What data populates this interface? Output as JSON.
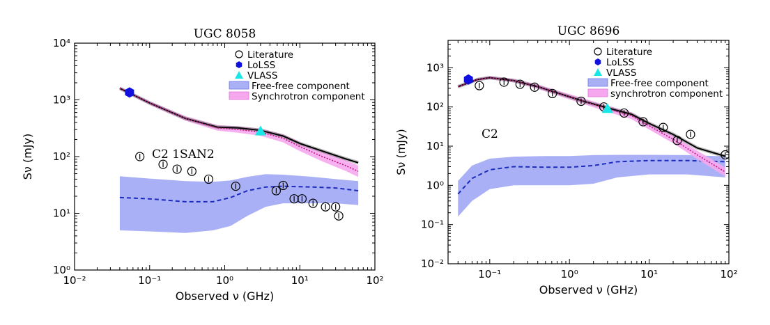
{
  "chart_data": [
    {
      "type": "scatter",
      "title": "UGC 8058",
      "xlabel": "Observed ν (GHz)",
      "ylabel": "Sν (mJy)",
      "annotation": "C2 1SAN2",
      "xscale": "log",
      "yscale": "log",
      "xlim": [
        0.01,
        100
      ],
      "ylim": [
        1,
        10000
      ],
      "xticks": [
        "10⁻²",
        "10⁻¹",
        "10⁰",
        "10¹",
        "10²"
      ],
      "yticks": [
        "10⁰",
        "10¹",
        "10²",
        "10³",
        "10⁴"
      ],
      "legend_position": "top-right",
      "legend": [
        "Literature",
        "LoLSS",
        "VLASS",
        "Free-free component",
        "Synchrotron component"
      ],
      "literature": {
        "x": [
          0.074,
          0.151,
          0.232,
          0.365,
          0.611,
          1.4,
          4.85,
          6.0,
          8.4,
          10.7,
          15.0,
          22.0,
          30.0,
          33.0
        ],
        "y": [
          100,
          73,
          60,
          55,
          40,
          30,
          25,
          31,
          18,
          18,
          15,
          13,
          13,
          9
        ]
      },
      "lolss": {
        "x": [
          0.054
        ],
        "y": [
          1350
        ]
      },
      "vlass": {
        "x": [
          3.0
        ],
        "y": [
          280
        ]
      },
      "total_fit": {
        "x": [
          0.04,
          0.1,
          0.3,
          0.8,
          1.5,
          3,
          6,
          10,
          20,
          40,
          60
        ],
        "y": [
          1600,
          880,
          470,
          330,
          320,
          290,
          230,
          170,
          125,
          92,
          78
        ]
      },
      "synchrotron": {
        "x": [
          0.04,
          0.1,
          0.3,
          0.8,
          1.5,
          3,
          6,
          10,
          20,
          40,
          60
        ],
        "y": [
          1600,
          880,
          470,
          320,
          300,
          270,
          210,
          150,
          100,
          70,
          55
        ]
      },
      "freefree": {
        "x": [
          0.04,
          0.1,
          0.3,
          0.7,
          1.2,
          2,
          3.5,
          6,
          15,
          30,
          60
        ],
        "y": [
          19,
          18,
          16,
          16,
          19,
          25,
          29,
          30,
          29,
          28,
          25
        ],
        "low": [
          5,
          4.8,
          4.5,
          5,
          6,
          9,
          13,
          15,
          15,
          15,
          14
        ],
        "high": [
          45,
          41,
          37,
          36,
          38,
          44,
          49,
          48,
          44,
          40,
          37
        ]
      }
    },
    {
      "type": "scatter",
      "title": "UGC 8696",
      "xlabel": "Observed ν (GHz)",
      "ylabel": "Sν (mJy)",
      "annotation": "C2",
      "xscale": "log",
      "yscale": "log",
      "xlim": [
        0.03,
        100
      ],
      "ylim": [
        0.01,
        5000
      ],
      "xticks": [
        "10⁻¹",
        "10⁰",
        "10¹",
        "10²"
      ],
      "yticks": [
        "10⁻²",
        "10⁻¹",
        "10⁰",
        "10¹",
        "10²",
        "10³"
      ],
      "legend_position": "top-right",
      "legend": [
        "Literature",
        "LoLSS",
        "VLASS",
        "Free-free component",
        "synchrotron component"
      ],
      "literature": {
        "x": [
          0.074,
          0.151,
          0.24,
          0.365,
          0.611,
          1.4,
          2.7,
          4.85,
          8.4,
          15.0,
          22.5,
          33.0,
          90.0
        ],
        "y": [
          350,
          430,
          380,
          320,
          220,
          140,
          100,
          70,
          42,
          30,
          14,
          20,
          6
        ]
      },
      "lolss": {
        "x": [
          0.054
        ],
        "y": [
          500
        ]
      },
      "vlass": {
        "x": [
          3.0
        ],
        "y": [
          90
        ]
      },
      "total_fit": {
        "x": [
          0.04,
          0.07,
          0.1,
          0.2,
          0.4,
          0.8,
          1.5,
          3,
          6,
          10,
          20,
          40,
          90
        ],
        "y": [
          330,
          500,
          560,
          470,
          330,
          210,
          140,
          95,
          65,
          38,
          20,
          9,
          5.5
        ]
      },
      "synchrotron": {
        "x": [
          0.04,
          0.07,
          0.1,
          0.2,
          0.4,
          0.8,
          1.5,
          3,
          6,
          10,
          20,
          40,
          90
        ],
        "y": [
          330,
          500,
          560,
          470,
          330,
          210,
          140,
          90,
          60,
          33,
          15,
          6,
          2.2
        ]
      },
      "freefree": {
        "x": [
          0.04,
          0.06,
          0.1,
          0.2,
          0.5,
          1.0,
          2.0,
          4,
          10,
          30,
          90
        ],
        "y": [
          0.6,
          1.5,
          2.5,
          3.0,
          2.9,
          2.9,
          3.2,
          4.0,
          4.3,
          4.3,
          4.0
        ],
        "low": [
          0.16,
          0.4,
          0.8,
          1.0,
          1.0,
          1.0,
          1.1,
          1.6,
          1.9,
          1.9,
          1.6
        ],
        "high": [
          1.3,
          3.2,
          4.8,
          5.4,
          5.6,
          5.6,
          5.9,
          6.0,
          6.0,
          5.9,
          5.5
        ]
      }
    }
  ]
}
